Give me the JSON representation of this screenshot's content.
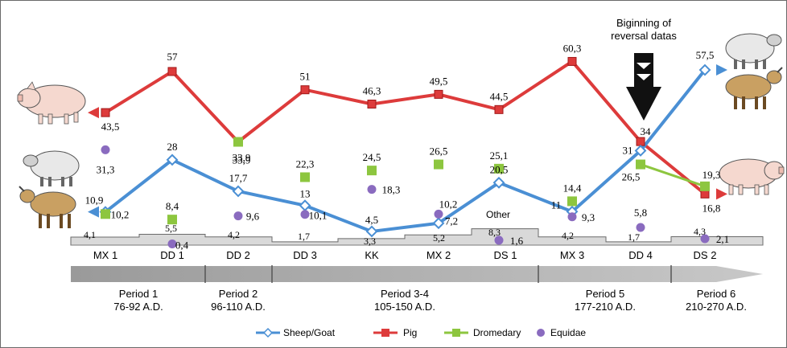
{
  "chart_data": {
    "type": "line",
    "categories": [
      "MX 1",
      "DD 1",
      "DD 2",
      "DD 3",
      "KK",
      "MX 2",
      "DS 1",
      "MX 3",
      "DD 4",
      "DS 2"
    ],
    "series": [
      {
        "name": "Sheep/Goat",
        "color": "#4a8fd4",
        "marker": "diamond",
        "values": [
          10.9,
          28,
          17.7,
          13,
          4.5,
          7.2,
          20.5,
          11,
          31,
          57.5
        ],
        "labels": [
          "10,9",
          "28",
          "17,7",
          "13",
          "4,5",
          "7,2",
          "20,5",
          "11",
          "31",
          "57,5"
        ]
      },
      {
        "name": "Pig",
        "color": "#dd3b3b",
        "marker": "square",
        "values": [
          43.5,
          57,
          33.9,
          51,
          46.3,
          49.5,
          44.5,
          60.3,
          34,
          16.8
        ],
        "labels": [
          "43,5",
          "57",
          "33,9",
          "51",
          "46,3",
          "49,5",
          "44,5",
          "60,3",
          "34",
          "16,8"
        ]
      },
      {
        "name": "Dromedary",
        "color": "#8dc63f",
        "marker": "square",
        "values": [
          10.2,
          8.4,
          33.9,
          22.3,
          24.5,
          26.5,
          25.1,
          14.4,
          26.5,
          19.3
        ],
        "labels": [
          "10,2",
          "8,4",
          "33,9",
          "22,3",
          "24,5",
          "26,5",
          "25,1",
          "14,4",
          "26,5",
          "19,3"
        ]
      },
      {
        "name": "Equidae",
        "color": "#8a6bbf",
        "marker": "circle",
        "values": [
          31.3,
          0.4,
          9.6,
          10.1,
          18.3,
          10.2,
          1.6,
          9.3,
          5.8,
          2.1
        ],
        "labels": [
          "31,3",
          "0,4",
          "9,6",
          "10,1",
          "18,3",
          "10,2",
          "1,6",
          "9,3",
          "5,8",
          "2,1"
        ]
      },
      {
        "name": "Other",
        "color": "#d9d9d9",
        "type": "step",
        "values": [
          4.1,
          5.5,
          4.2,
          1.7,
          3.3,
          5.2,
          8.3,
          4.2,
          1.7,
          4.3
        ],
        "labels": [
          "4,1",
          "5,5",
          "4,2",
          "1,7",
          "3,3",
          "5,2",
          "8,3",
          "4,2",
          "1,7",
          "4,3"
        ]
      }
    ],
    "other_label": "Other",
    "annotation": "Biginning of reversal datas",
    "periods": [
      {
        "name": "Period 1",
        "dates": "76-92 A.D."
      },
      {
        "name": "Period 2",
        "dates": "96-110 A.D."
      },
      {
        "name": "Period 3-4",
        "dates": "105-150 A.D."
      },
      {
        "name": "Period 5",
        "dates": "177-210 A.D."
      },
      {
        "name": "Period 6",
        "dates": "210-270 A.D."
      }
    ],
    "legend_position": "bottom",
    "ylim": [
      0,
      62
    ]
  }
}
